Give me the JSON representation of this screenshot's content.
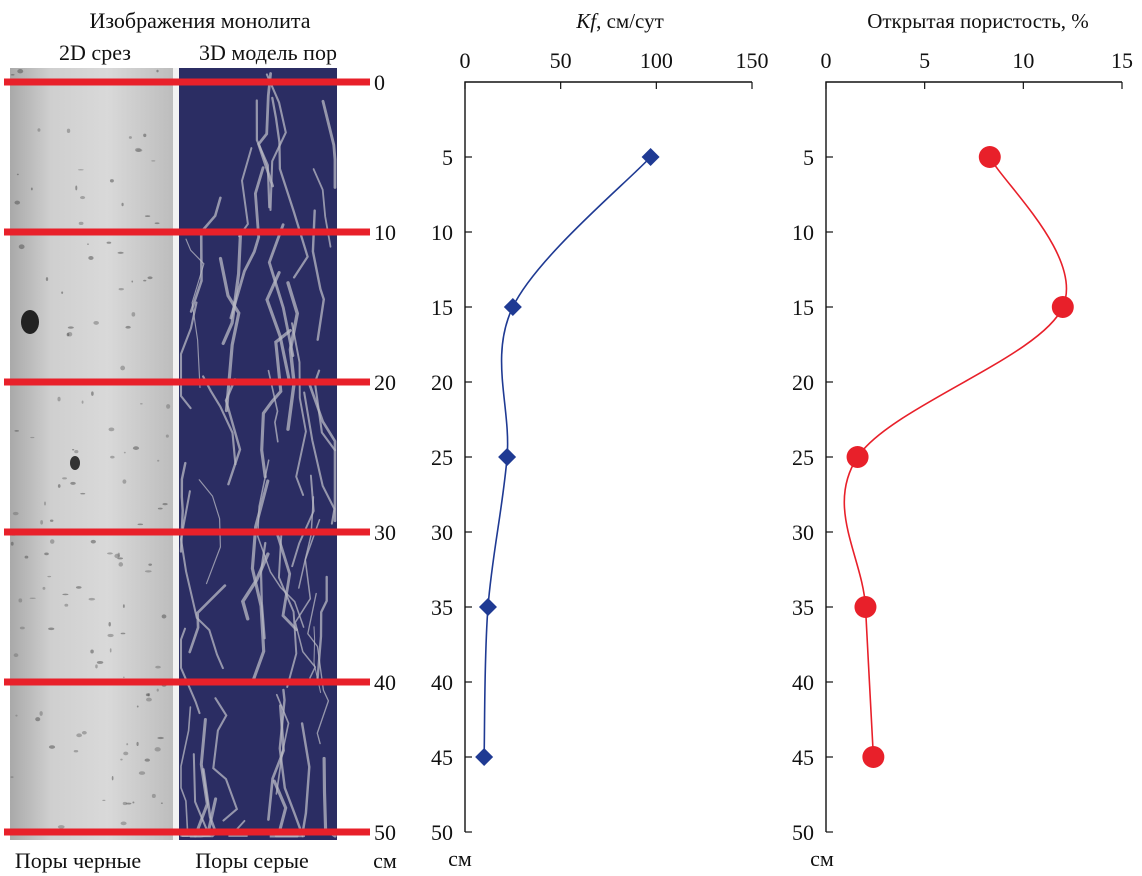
{
  "image_panel": {
    "title": "Изображения монолита",
    "col1_label": "2D срез",
    "col2_label": "3D модель пор",
    "col1_caption": "Поры черные",
    "col2_caption": "Поры серые",
    "depth_unit": "см",
    "depth_marks": [
      0,
      10,
      20,
      30,
      40,
      50
    ],
    "marker_color": "#e8202a",
    "pore_model_bg": "#2b2d63"
  },
  "chart_data": [
    {
      "type": "line",
      "title_italic": "Kf",
      "title_rest": ", см/сут",
      "x_ticks": [
        0,
        50,
        100,
        150
      ],
      "xlim": [
        0,
        150
      ],
      "y_ticks": [
        5,
        10,
        15,
        20,
        25,
        30,
        35,
        40,
        45,
        50
      ],
      "ylim": [
        0,
        50
      ],
      "y_unit": "см",
      "marker": "diamond",
      "color": "#1f3a93",
      "x": [
        97,
        25,
        22,
        12,
        10
      ],
      "y": [
        5,
        15,
        25,
        35,
        45
      ]
    },
    {
      "type": "line",
      "title": "Открытая пористость, %",
      "x_ticks": [
        0,
        5,
        10,
        15
      ],
      "xlim": [
        0,
        15
      ],
      "y_ticks": [
        5,
        10,
        15,
        20,
        25,
        30,
        35,
        40,
        45,
        50
      ],
      "ylim": [
        0,
        50
      ],
      "y_unit": "см",
      "marker": "circle",
      "color": "#e8202a",
      "x": [
        8.3,
        12.0,
        1.6,
        2.0,
        2.4
      ],
      "y": [
        5,
        15,
        25,
        35,
        45
      ]
    }
  ]
}
